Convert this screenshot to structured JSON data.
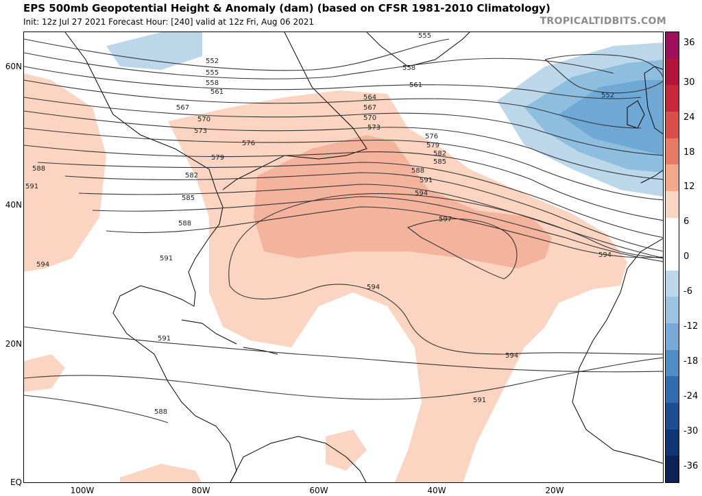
{
  "header": {
    "title": "EPS 500mb Geopotential Height & Anomaly (dam) (based on CFSR 1981-2010 Climatology)",
    "subtitle": "Init: 12z Jul 27 2021   Forecast Hour: [240]   valid at 12z Fri, Aug 06 2021",
    "credit": "TROPICALTIDBITS.COM"
  },
  "map": {
    "lat_labels": [
      "60N",
      "40N",
      "20N",
      "EQ"
    ],
    "lon_labels": [
      "100W",
      "80W",
      "60W",
      "40W",
      "20W"
    ],
    "colors": {
      "warm_light": "#fbd5c2",
      "warm_mid": "#f4b39c",
      "cool_light": "#bcd6ea",
      "cool_mid": "#8ebedf",
      "cool_dark": "#6fa8d4",
      "contour": "#333333",
      "land": "#000000"
    },
    "contour_labels": [
      "552",
      "555",
      "558",
      "561",
      "564",
      "567",
      "570",
      "573",
      "576",
      "579",
      "582",
      "585",
      "588",
      "591",
      "594",
      "597"
    ]
  },
  "colorbar": {
    "labels": [
      "36",
      "30",
      "24",
      "18",
      "12",
      "6",
      "0",
      "-6",
      "-12",
      "-18",
      "-24",
      "-30",
      "-36"
    ],
    "colors": [
      "#a0105a",
      "#b3143a",
      "#c8283a",
      "#d9504a",
      "#e87c63",
      "#f4a88a",
      "#fbd5c2",
      "#ffffff",
      "#ffffff",
      "#bcd6ea",
      "#9cc3e2",
      "#77aad6",
      "#4f8dc6",
      "#2e6db0",
      "#1b4e95",
      "#0f3575",
      "#0a2256"
    ]
  }
}
